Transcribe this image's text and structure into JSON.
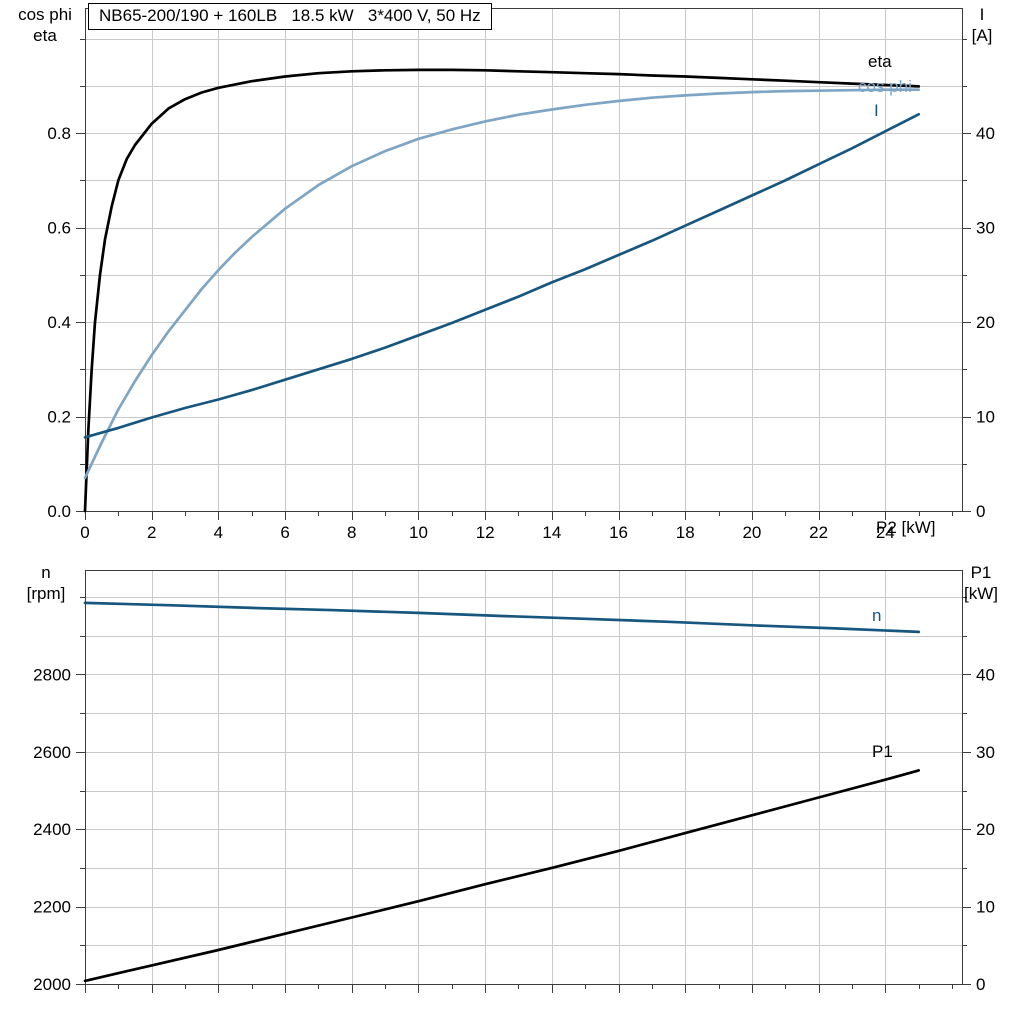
{
  "title_box": "NB65-200/190 + 160LB   18.5 kW   3*400 V, 50 Hz",
  "x_axis_label": "P2 [kW]",
  "header": {
    "top_left_line1": "cos phi",
    "top_left_line2": "eta",
    "top_right_line1": "I",
    "top_right_line2": "[A]",
    "bottom_left_line1": "n",
    "bottom_left_line2": "[rpm]",
    "bottom_right_line1": "P1",
    "bottom_right_line2": "[kW]"
  },
  "curve_labels": {
    "eta": "eta",
    "cos_phi": "cos phi",
    "current": "I",
    "speed": "n",
    "p1": "P1"
  },
  "colors": {
    "eta": "#000000",
    "cos_phi": "#7fa5c5",
    "current": "#17567f",
    "speed": "#17567f",
    "p1": "#000000",
    "grid": "#c9c9c9",
    "axis": "#3c3c3c",
    "text": "#000000",
    "background": "#ffffff"
  },
  "chart_data": [
    {
      "type": "line",
      "title": "NB65-200/190 + 160LB   18.5 kW   3*400 V, 50 Hz",
      "xlabel": "P2 [kW]",
      "ylabel_left": "cos phi / eta",
      "ylabel_right": "I [A]",
      "grid": true,
      "legend_position": "right-end-labels",
      "xlim": [
        0,
        26.3
      ],
      "x_major_ticks": [
        0,
        2,
        4,
        6,
        8,
        10,
        12,
        14,
        16,
        18,
        20,
        22,
        24
      ],
      "x_tick_labels": [
        "0",
        "2",
        "4",
        "6",
        "8",
        "10",
        "12",
        "14",
        "16",
        "18",
        "20",
        "22",
        "24"
      ],
      "x_minor_step": 1,
      "ylim_left": [
        0,
        1.065
      ],
      "y_left_ticks": [
        0,
        0.2,
        0.4,
        0.6,
        0.8
      ],
      "y_left_tick_labels": [
        "0.0",
        "0.2",
        "0.4",
        "0.6",
        "0.8"
      ],
      "y_left_grid_step": 0.1,
      "ylim_right": [
        0,
        53.25
      ],
      "y_right_ticks": [
        0,
        10,
        20,
        30,
        40
      ],
      "y_right_tick_labels": [
        "0",
        "10",
        "20",
        "30",
        "40"
      ],
      "y_right_grid_step": 5,
      "series": [
        {
          "name": "eta",
          "axis": "left",
          "color_key": "eta",
          "x": [
            0,
            0.1,
            0.2,
            0.3,
            0.45,
            0.6,
            0.8,
            1,
            1.25,
            1.5,
            2,
            2.5,
            3,
            3.5,
            4,
            5,
            6,
            7,
            8,
            9,
            10,
            11,
            12,
            13,
            14,
            15,
            16,
            17,
            18,
            19,
            20,
            21,
            22,
            23,
            24,
            25
          ],
          "y": [
            0,
            0.17,
            0.3,
            0.4,
            0.5,
            0.575,
            0.645,
            0.7,
            0.745,
            0.775,
            0.82,
            0.852,
            0.872,
            0.886,
            0.896,
            0.91,
            0.92,
            0.927,
            0.931,
            0.933,
            0.934,
            0.934,
            0.933,
            0.931,
            0.929,
            0.927,
            0.925,
            0.922,
            0.92,
            0.917,
            0.914,
            0.911,
            0.908,
            0.905,
            0.902,
            0.899
          ]
        },
        {
          "name": "cos phi",
          "axis": "left",
          "color_key": "cos_phi",
          "x": [
            0,
            0.5,
            1,
            1.5,
            2,
            2.5,
            3,
            3.5,
            4,
            4.5,
            5,
            6,
            7,
            8,
            9,
            10,
            11,
            12,
            13,
            14,
            15,
            16,
            17,
            18,
            19,
            20,
            21,
            22,
            23,
            24,
            25
          ],
          "y": [
            0.07,
            0.145,
            0.215,
            0.275,
            0.33,
            0.38,
            0.425,
            0.47,
            0.51,
            0.547,
            0.58,
            0.64,
            0.69,
            0.73,
            0.762,
            0.788,
            0.808,
            0.825,
            0.839,
            0.85,
            0.86,
            0.868,
            0.875,
            0.88,
            0.884,
            0.887,
            0.889,
            0.89,
            0.891,
            0.892,
            0.892
          ]
        },
        {
          "name": "I",
          "axis": "right",
          "unit": "A",
          "color_key": "current",
          "x": [
            0,
            1,
            2,
            3,
            4,
            5,
            6,
            7,
            8,
            9,
            10,
            11,
            12,
            13,
            14,
            15,
            16,
            17,
            18,
            19,
            20,
            21,
            22,
            23,
            24,
            25
          ],
          "y": [
            7.8,
            8.8,
            9.9,
            10.9,
            11.8,
            12.8,
            13.9,
            15,
            16.1,
            17.3,
            18.6,
            19.9,
            21.3,
            22.7,
            24.2,
            25.6,
            27.1,
            28.6,
            30.2,
            31.8,
            33.4,
            35,
            36.7,
            38.4,
            40.2,
            42
          ]
        }
      ]
    },
    {
      "type": "line",
      "title": "",
      "xlabel": "",
      "ylabel_left": "n [rpm]",
      "ylabel_right": "P1 [kW]",
      "grid": true,
      "legend_position": "right-end-labels",
      "xlim": [
        0,
        26.3
      ],
      "x_major_ticks": [
        0,
        2,
        4,
        6,
        8,
        10,
        12,
        14,
        16,
        18,
        20,
        22,
        24
      ],
      "x_tick_labels": [
        "0",
        "2",
        "4",
        "6",
        "8",
        "10",
        "12",
        "14",
        "16",
        "18",
        "20",
        "22",
        "24"
      ],
      "x_minor_step": 1,
      "ylim_left": [
        2000,
        3070
      ],
      "y_left_ticks": [
        2000,
        2200,
        2400,
        2600,
        2800
      ],
      "y_left_tick_labels": [
        "2000",
        "2200",
        "2400",
        "2600",
        "2800"
      ],
      "y_left_grid_step": 100,
      "ylim_right": [
        0,
        53.5
      ],
      "y_right_ticks": [
        0,
        10,
        20,
        30,
        40
      ],
      "y_right_tick_labels": [
        "0",
        "10",
        "20",
        "30",
        "40"
      ],
      "y_right_grid_step": 5,
      "series": [
        {
          "name": "n",
          "axis": "left",
          "unit": "rpm",
          "color_key": "speed",
          "x": [
            0,
            2.5,
            5,
            7.5,
            10,
            12.5,
            15,
            17.5,
            20,
            22.5,
            25
          ],
          "y": [
            2985,
            2979,
            2972,
            2966,
            2959,
            2951,
            2944,
            2936,
            2927,
            2919,
            2910
          ]
        },
        {
          "name": "P1",
          "axis": "right",
          "unit": "kW",
          "color_key": "p1",
          "x": [
            0,
            2,
            4,
            6,
            8,
            10,
            12,
            14,
            16,
            18,
            20,
            22,
            24,
            25
          ],
          "y": [
            0.4,
            2.4,
            4.4,
            6.5,
            8.6,
            10.7,
            12.9,
            15,
            17.2,
            19.5,
            21.8,
            24.1,
            26.4,
            27.6
          ]
        }
      ]
    }
  ]
}
